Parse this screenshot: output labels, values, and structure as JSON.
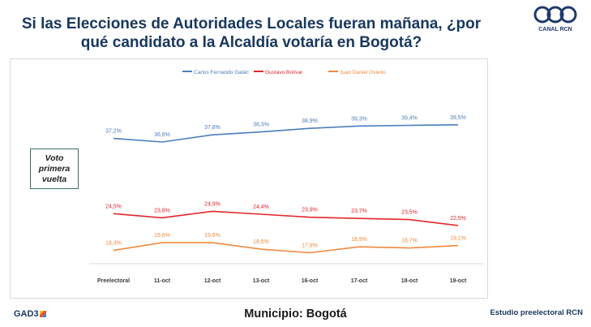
{
  "title_line1": "Si las Elecciones de Autoridades Locales fueran mañana, ¿por",
  "title_line2": "qué candidato a la Alcaldía votaría en Bogotá?",
  "brand": "CANAL RCN",
  "vote_label": "Voto primera vuelta",
  "footer_left": "GAD3",
  "footer_center": "Municipio: Bogotá",
  "footer_right": "Estudio preelectoral RCN",
  "chart_data": {
    "type": "line",
    "categories": [
      "Preelectoral",
      "11-oct",
      "12-oct",
      "13-oct",
      "16-oct",
      "17-oct",
      "18-oct",
      "19-oct"
    ],
    "series": [
      {
        "name": "Carlos Fernando Galán",
        "color": "#4a7ebb",
        "values": [
          37.2,
          36.6,
          37.8,
          38.3,
          38.9,
          39.3,
          39.4,
          39.5
        ],
        "labels": [
          "37,2%",
          "36,6%",
          "37,8%",
          "38,3%",
          "38,9%",
          "39,3%",
          "39,4%",
          "39,5%"
        ]
      },
      {
        "name": "Gustavo Bolívar",
        "color": "#e3272b",
        "values": [
          24.5,
          23.8,
          24.9,
          24.4,
          23.9,
          23.7,
          23.5,
          22.5
        ],
        "labels": [
          "24,5%",
          "23,8%",
          "24,9%",
          "24,4%",
          "23,9%",
          "23,7%",
          "23,5%",
          "22,5%"
        ]
      },
      {
        "name": "Juan Daniel Oviedo",
        "color": "#ef8a3e",
        "values": [
          18.3,
          19.6,
          19.6,
          18.5,
          17.9,
          18.9,
          18.7,
          19.1
        ],
        "labels": [
          "18,3%",
          "19,6%",
          "19,6%",
          "18,5%",
          "17,9%",
          "18,9%",
          "18,7%",
          "19,1%"
        ]
      }
    ],
    "legend_position": "top",
    "grid": false
  }
}
